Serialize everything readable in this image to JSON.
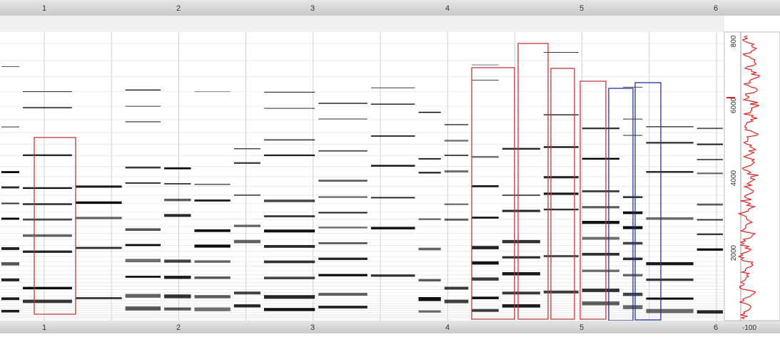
{
  "top_ruler": {
    "labels": [
      "1",
      "2",
      "3",
      "4",
      "5",
      "6"
    ]
  },
  "bottom_ruler": {
    "labels": [
      "1",
      "2",
      "3",
      "4",
      "5",
      "6"
    ]
  },
  "frequency_scale": {
    "labels": [
      "2000",
      "4000",
      "6000",
      "800"
    ]
  },
  "level_scale": {
    "label": "-100"
  }
}
